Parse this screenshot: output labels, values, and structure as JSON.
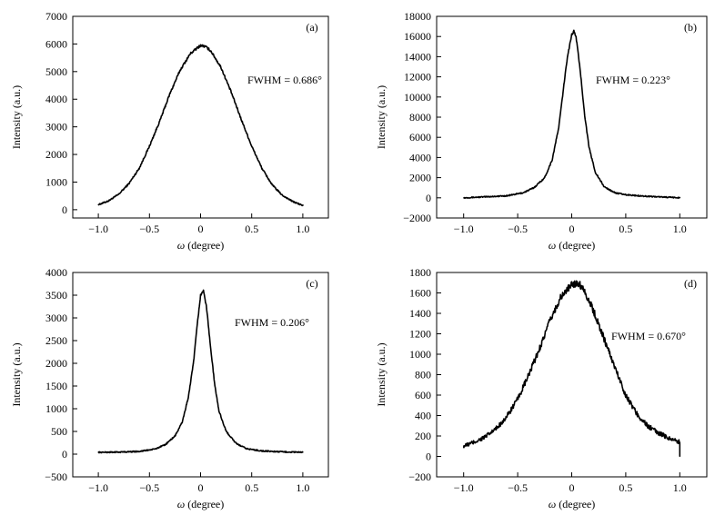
{
  "chart_data": [
    {
      "type": "line",
      "panel_label": "(a)",
      "annotation": "FWHM = 0.686°",
      "xlabel_symbol": "ω",
      "xlabel_text": " (degree)",
      "ylabel": "Intensity (a.u.)",
      "xlim": [
        -1.25,
        1.25
      ],
      "ylim": [
        -300,
        7000
      ],
      "xticks": [
        -1.0,
        -0.5,
        0.0,
        0.5,
        1.0
      ],
      "xtick_labels": [
        "−1.0",
        "−0.5",
        "0",
        "0.5",
        "1.0"
      ],
      "yticks": [
        0,
        1000,
        2000,
        3000,
        4000,
        5000,
        6000,
        7000
      ],
      "ytick_labels": [
        "0",
        "1000",
        "2000",
        "3000",
        "4000",
        "5000",
        "6000",
        "7000"
      ],
      "series": [
        {
          "x": [
            -1.0,
            -0.9,
            -0.8,
            -0.7,
            -0.6,
            -0.5,
            -0.4,
            -0.3,
            -0.2,
            -0.1,
            0.0,
            0.05,
            0.1,
            0.2,
            0.3,
            0.4,
            0.5,
            0.6,
            0.7,
            0.8,
            0.9,
            1.0
          ],
          "y": [
            180,
            320,
            560,
            950,
            1500,
            2300,
            3200,
            4200,
            5050,
            5650,
            5950,
            5900,
            5750,
            5150,
            4250,
            3250,
            2300,
            1500,
            900,
            520,
            300,
            150
          ]
        }
      ]
    },
    {
      "type": "line",
      "panel_label": "(b)",
      "annotation": "FWHM = 0.223°",
      "xlabel_symbol": "ω",
      "xlabel_text": " (degree)",
      "ylabel": "Intensity (a.u.)",
      "xlim": [
        -1.25,
        1.25
      ],
      "ylim": [
        -2000,
        18000
      ],
      "xticks": [
        -1.0,
        -0.5,
        0.0,
        0.5,
        1.0
      ],
      "xtick_labels": [
        "−1.0",
        "−0.5",
        "0",
        "0.5",
        "1.0"
      ],
      "yticks": [
        -2000,
        0,
        2000,
        4000,
        6000,
        8000,
        10000,
        12000,
        14000,
        16000,
        18000
      ],
      "ytick_labels": [
        "−2000",
        "0",
        "2000",
        "4000",
        "6000",
        "8000",
        "10000",
        "12000",
        "14000",
        "16000",
        "18000"
      ],
      "series": [
        {
          "x": [
            -1.0,
            -0.8,
            -0.6,
            -0.45,
            -0.35,
            -0.25,
            -0.18,
            -0.12,
            -0.08,
            -0.04,
            0.0,
            0.02,
            0.04,
            0.08,
            0.12,
            0.16,
            0.22,
            0.3,
            0.4,
            0.5,
            0.7,
            1.0
          ],
          "y": [
            0,
            100,
            200,
            500,
            1000,
            2000,
            3800,
            7000,
            10500,
            14000,
            16200,
            16500,
            16000,
            12500,
            8200,
            5000,
            2500,
            1100,
            500,
            300,
            150,
            0
          ]
        }
      ]
    },
    {
      "type": "line",
      "panel_label": "(c)",
      "annotation": "FWHM = 0.206°",
      "xlabel_symbol": "ω",
      "xlabel_text": " (degree)",
      "ylabel": "Intensity (a.u.)",
      "xlim": [
        -1.25,
        1.25
      ],
      "ylim": [
        -500,
        4000
      ],
      "xticks": [
        -1.0,
        -0.5,
        0.0,
        0.5,
        1.0
      ],
      "xtick_labels": [
        "−1.0",
        "−0.5",
        "0",
        "0.5",
        "1.0"
      ],
      "yticks": [
        -500,
        0,
        500,
        1000,
        1500,
        2000,
        2500,
        3000,
        3500,
        4000
      ],
      "ytick_labels": [
        "−500",
        "0",
        "500",
        "1000",
        "1500",
        "2000",
        "2500",
        "3000",
        "3500",
        "4000"
      ],
      "series": [
        {
          "x": [
            -1.0,
            -0.8,
            -0.6,
            -0.45,
            -0.35,
            -0.25,
            -0.18,
            -0.12,
            -0.07,
            -0.03,
            0.0,
            0.03,
            0.06,
            0.1,
            0.14,
            0.18,
            0.25,
            0.35,
            0.45,
            0.6,
            0.8,
            1.0
          ],
          "y": [
            40,
            45,
            60,
            110,
            200,
            400,
            700,
            1250,
            2000,
            2900,
            3500,
            3600,
            3200,
            2300,
            1500,
            950,
            500,
            230,
            120,
            70,
            50,
            40
          ]
        }
      ]
    },
    {
      "type": "line",
      "panel_label": "(d)",
      "annotation": "FWHM = 0.670°",
      "xlabel_symbol": "ω",
      "xlabel_text": " (degree)",
      "ylabel": "Intensity (a.u.)",
      "xlim": [
        -1.25,
        1.25
      ],
      "ylim": [
        -200,
        1800
      ],
      "xticks": [
        -1.0,
        -0.5,
        0.0,
        0.5,
        1.0
      ],
      "xtick_labels": [
        "−1.0",
        "−0.5",
        "0",
        "0.5",
        "1.0"
      ],
      "yticks": [
        -200,
        0,
        200,
        400,
        600,
        800,
        1000,
        1200,
        1400,
        1600,
        1800
      ],
      "ytick_labels": [
        "−200",
        "0",
        "200",
        "400",
        "600",
        "800",
        "1000",
        "1200",
        "1400",
        "1600",
        "1800"
      ],
      "series": [
        {
          "x": [
            -1.0,
            -0.9,
            -0.8,
            -0.7,
            -0.6,
            -0.5,
            -0.4,
            -0.3,
            -0.2,
            -0.1,
            0.0,
            0.05,
            0.1,
            0.2,
            0.3,
            0.4,
            0.5,
            0.6,
            0.7,
            0.8,
            0.9,
            1.0,
            1.0
          ],
          "y": [
            100,
            140,
            190,
            270,
            390,
            560,
            790,
            1050,
            1330,
            1560,
            1680,
            1700,
            1660,
            1430,
            1150,
            870,
            600,
            420,
            300,
            230,
            180,
            140,
            0
          ]
        }
      ]
    }
  ]
}
